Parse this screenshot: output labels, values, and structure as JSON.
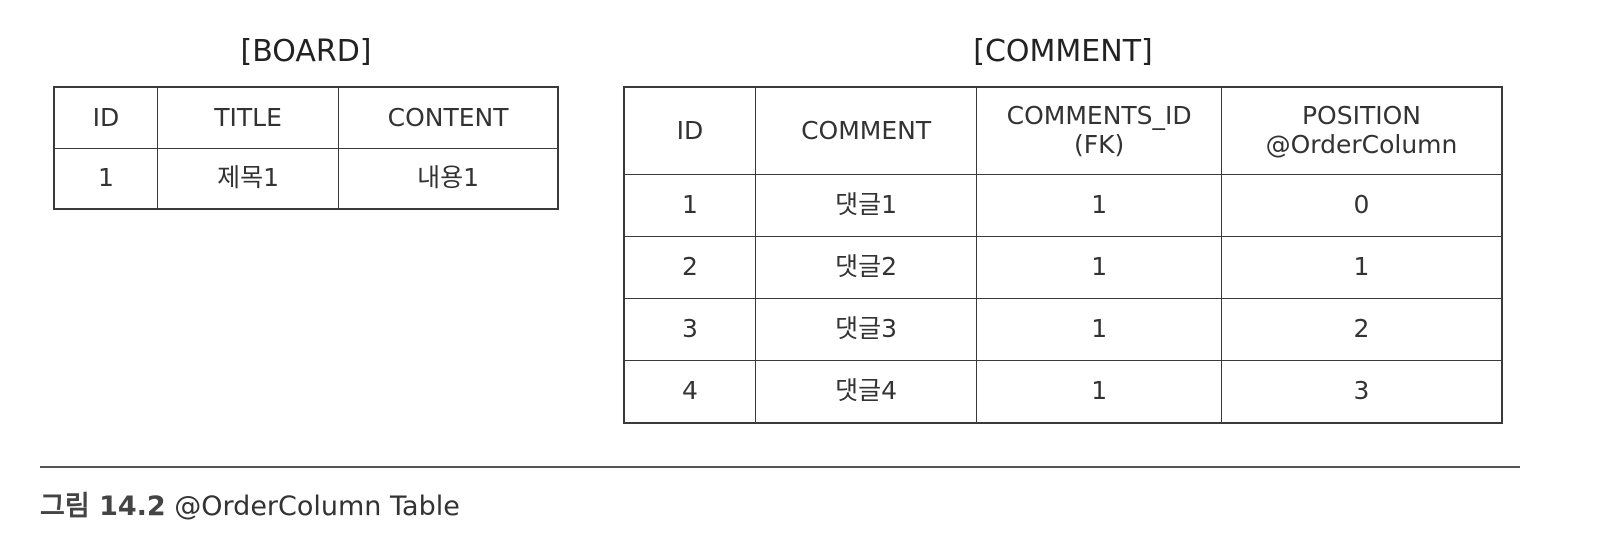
{
  "board": {
    "title": "[BOARD]",
    "columns": [
      "ID",
      "TITLE",
      "CONTENT"
    ],
    "rows": [
      [
        "1",
        "제목1",
        "내용1"
      ]
    ]
  },
  "comment": {
    "title": "[COMMENT]",
    "columns": [
      [
        "ID"
      ],
      [
        "COMMENT"
      ],
      [
        "COMMENTS_ID",
        "(FK)"
      ],
      [
        "POSITION",
        "@OrderColumn"
      ]
    ],
    "rows": [
      [
        "1",
        "댓글1",
        "1",
        "0"
      ],
      [
        "2",
        "댓글2",
        "1",
        "1"
      ],
      [
        "3",
        "댓글3",
        "1",
        "2"
      ],
      [
        "4",
        "댓글4",
        "1",
        "3"
      ]
    ]
  },
  "caption": {
    "label": "그림 14.2",
    "text": "@OrderColumn Table"
  }
}
